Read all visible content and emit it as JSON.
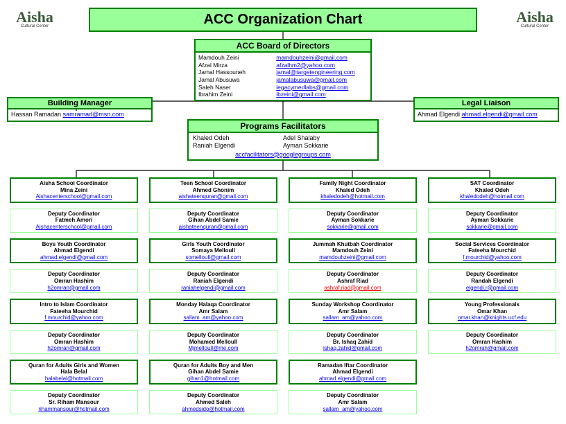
{
  "title": "ACC Organization Chart",
  "logo": {
    "main": "Aisha",
    "sub": "Cultural Center"
  },
  "board": {
    "header": "ACC Board of Directors",
    "members": [
      {
        "name": "Mamdouh Zeini",
        "email": "mamdouhzeini@gmail.com"
      },
      {
        "name": "Afzal Mirza",
        "email": "afzalhm2@yahoo.com"
      },
      {
        "name": "Jamal Hassouneh",
        "email": "jamal@targetengineering.com"
      },
      {
        "name": "Jamal Abusuwa",
        "email": "jamalabusuwa@gmail.com"
      },
      {
        "name": "Saleh Naser",
        "email": "legacymedlabs@gmail.com"
      },
      {
        "name": "Ibrahim Zeini",
        "email": "ibzeini@gmail.com"
      }
    ]
  },
  "building_manager": {
    "header": "Building Manager",
    "name": "Hassan Ramadan",
    "email": "samramad@msn.com"
  },
  "legal": {
    "header": "Legal Liaison",
    "name": "Ahmad Elgendi",
    "email": "ahmad.elgendi@gmail.com"
  },
  "programs": {
    "header": "Programs Facilitators",
    "left": [
      "Khaled Odeh",
      "Raniah Elgendi"
    ],
    "right": [
      "Adel Shalaby",
      "Ayman Sokkarie"
    ],
    "group_email": "accfacilitators@googlegroups.com"
  },
  "grid": [
    [
      {
        "role": "Aisha School Coordinator",
        "person": "Mina Zeini",
        "email": "Aishacenterschool@gmail.com"
      },
      {
        "role": "Teen School Coordinator",
        "person": "Ahmed Ghonim",
        "email": "aishateenquran@gmail.com"
      },
      {
        "role": "Family Night Coordinator",
        "person": "Khaled Odeh",
        "email": "khaledodeh@hotmail.com"
      },
      {
        "role": "SAT Coordinator",
        "person": "Khaled Odeh",
        "email": "khaledodeh@hotmail.com"
      }
    ],
    [
      {
        "role": "Deputy Coordinator",
        "person": "Fatmeh Amori",
        "email": "Aishacenterschool@gmail.com",
        "dep": true
      },
      {
        "role": "Deputy Coordinator",
        "person": "Gihan Abdel Samie",
        "email": "aishateenquran@gmail.com",
        "dep": true
      },
      {
        "role": "Deputy Coordinator",
        "person": "Ayman Sokkarie",
        "email": "sokkarie@gmail.com",
        "dep": true
      },
      {
        "role": "Deputy Coordinator",
        "person": "Ayman Sokkarie",
        "email": "sokkarie@gmail.com",
        "dep": true
      }
    ],
    [
      {
        "role": "Boys Youth Coordinator",
        "person": "Ahmad Elgendi",
        "email": "ahmad.elgendi@gmail.com"
      },
      {
        "role": "Girls Youth Coordinator",
        "person": "Somaya Melloull",
        "email": "somelloull@gmail.com"
      },
      {
        "role": "Jummah Khutbah Coordinator",
        "person": "Mamdouh Zeini",
        "email": "mamdouhzeini@gmail.com"
      },
      {
        "role": "Social Services Coordinator",
        "person": "Fateeha Mourchid",
        "email": "f.mourchid@yahoo.com"
      }
    ],
    [
      {
        "role": "Deputy Coordinator",
        "person": "Omran Hashim",
        "email": "h2omran@gmail.com",
        "dep": true
      },
      {
        "role": "Deputy Coordinator",
        "person": "Raniah Elgendi",
        "email": "raniahelgendi@gmail.com",
        "dep": true
      },
      {
        "role": "Deputy Coordinator",
        "person": "Ashraf Riad",
        "email": "ashraf.riad@gmail.com",
        "dep": true,
        "editing": true
      },
      {
        "role": "Deputy Coordinator",
        "person": "Randah Elgendi",
        "email": "elgendi.r@gmail.com",
        "dep": true
      }
    ],
    [
      {
        "role": "Intro to Islam Coordinator",
        "person": "Fateeha Mourchid",
        "email": "f.mourchid@yahoo.com"
      },
      {
        "role": "Monday Halaqa Coordinator",
        "person": "Amr Salam",
        "email": "sallam_am@yahoo.com"
      },
      {
        "role": "Sunday Workshop Coordinator",
        "person": "Amr Salam",
        "email": "sallam_am@yahoo.com"
      },
      {
        "role": "Young Professionals",
        "person": "Omar Khan",
        "email": "omar.khan@knights.ucf.edu"
      }
    ],
    [
      {
        "role": "Deputy Coordinator",
        "person": "Omran Hashim",
        "email": "h2omran@gmail.com",
        "dep": true
      },
      {
        "role": "Deputy Coordinator",
        "person": "Mohamed Melloull",
        "email": "Mjmelloull@me.com",
        "dep": true
      },
      {
        "role": "Deputy Coordinator",
        "person": "Br. Ishaq Zahid",
        "email": "ishaq.zahid@gmail.com",
        "dep": true
      },
      {
        "role": "Deputy Coordinator",
        "person": "Omran Hashim",
        "email": "h2omran@gmail.com",
        "dep": true
      }
    ],
    [
      {
        "role": "Quran for Adults Girls and Women",
        "person": "Hala Belal",
        "email": "halabelal@hotmail.com"
      },
      {
        "role": "Quran for Adults Boy and Men",
        "person": "Gihan Abdel Samie",
        "email": "gihan1@hotmail.com"
      },
      {
        "role": "Ramadan Iftar Coordinator",
        "person": "Ahmad Elgendi",
        "email": "ahmad.elgendi@gmail.com"
      },
      {
        "role": "",
        "person": "",
        "email": "",
        "empty": true
      }
    ],
    [
      {
        "role": "Deputy Coordinator",
        "person": "Sr. Riham Mansour",
        "email": "rihammansour@hotmail.com",
        "dep": true
      },
      {
        "role": "Deputy Coordinator",
        "person": "Ahmed Saleh",
        "email": "ahmedsido@hotmail.com",
        "dep": true
      },
      {
        "role": "Deputy Coordinator",
        "person": "Amr Salam",
        "email": "sallam_am@yahoo.com",
        "dep": true
      },
      {
        "role": "",
        "person": "",
        "email": "",
        "empty": true,
        "dep": true
      }
    ]
  ],
  "colors": {
    "green_border": "#008000",
    "green_fill": "#99ff99",
    "link": "#0000ee",
    "editing": "#ff0000"
  }
}
